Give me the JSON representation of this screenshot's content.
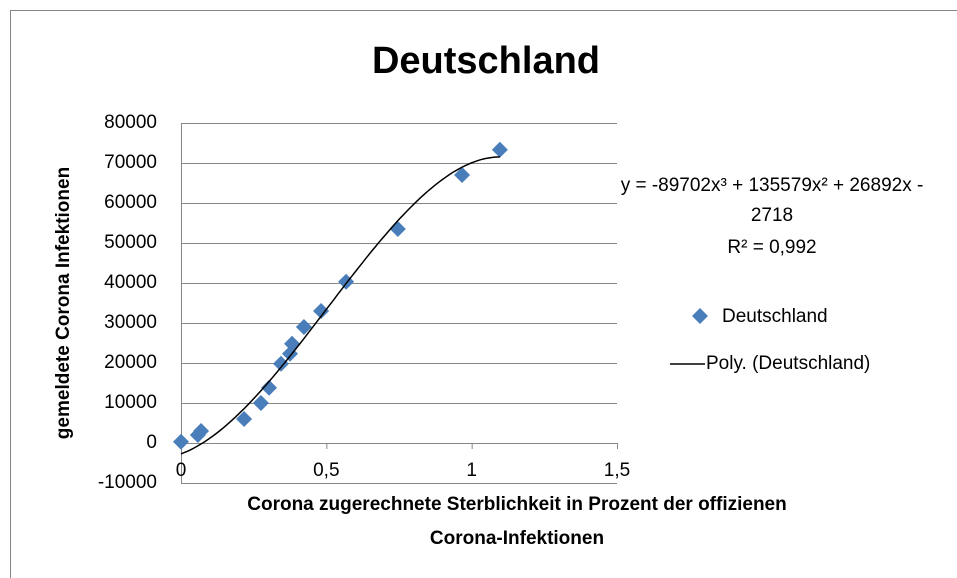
{
  "chart_data": {
    "type": "scatter",
    "title": "Deutschland",
    "x_label_lines": [
      "Corona zugerechnete Sterblichkeit in Prozent der offizienen",
      "Corona-Infektionen"
    ],
    "y_label": "gemeldete Corona Infektionen",
    "series": [
      {
        "name": "Deutschland",
        "color": "#4a7ebb",
        "x": [
          0,
          0.058,
          0.069,
          0.217,
          0.275,
          0.303,
          0.344,
          0.375,
          0.382,
          0.423,
          0.482,
          0.568,
          0.746,
          0.967,
          1.097
        ],
        "values": [
          300,
          2000,
          3000,
          6000,
          10000,
          13800,
          19800,
          22300,
          24800,
          29000,
          33000,
          40300,
          53500,
          67000,
          73300
        ]
      }
    ],
    "trendline": {
      "name": "Poly. (Deutschland)",
      "color": "#000000",
      "coefficients": [
        -89702,
        135579,
        26892,
        -2718
      ],
      "equation_lines": [
        "y = -89702x³ + 135579x² + 26892x -",
        "2718"
      ],
      "r_squared": {
        "value": 0.992,
        "label": "R² = 0,992"
      }
    },
    "xlim": [
      0,
      1.5
    ],
    "xticks": [
      0,
      {
        "value": 0.5,
        "label": "0,5"
      },
      1,
      {
        "value": 1.5,
        "label": "1,5"
      }
    ],
    "ylim": [
      -10000,
      80000
    ],
    "yticks": [
      -10000,
      0,
      10000,
      20000,
      30000,
      40000,
      50000,
      60000,
      70000,
      80000
    ],
    "grid": true,
    "legend": "right"
  }
}
